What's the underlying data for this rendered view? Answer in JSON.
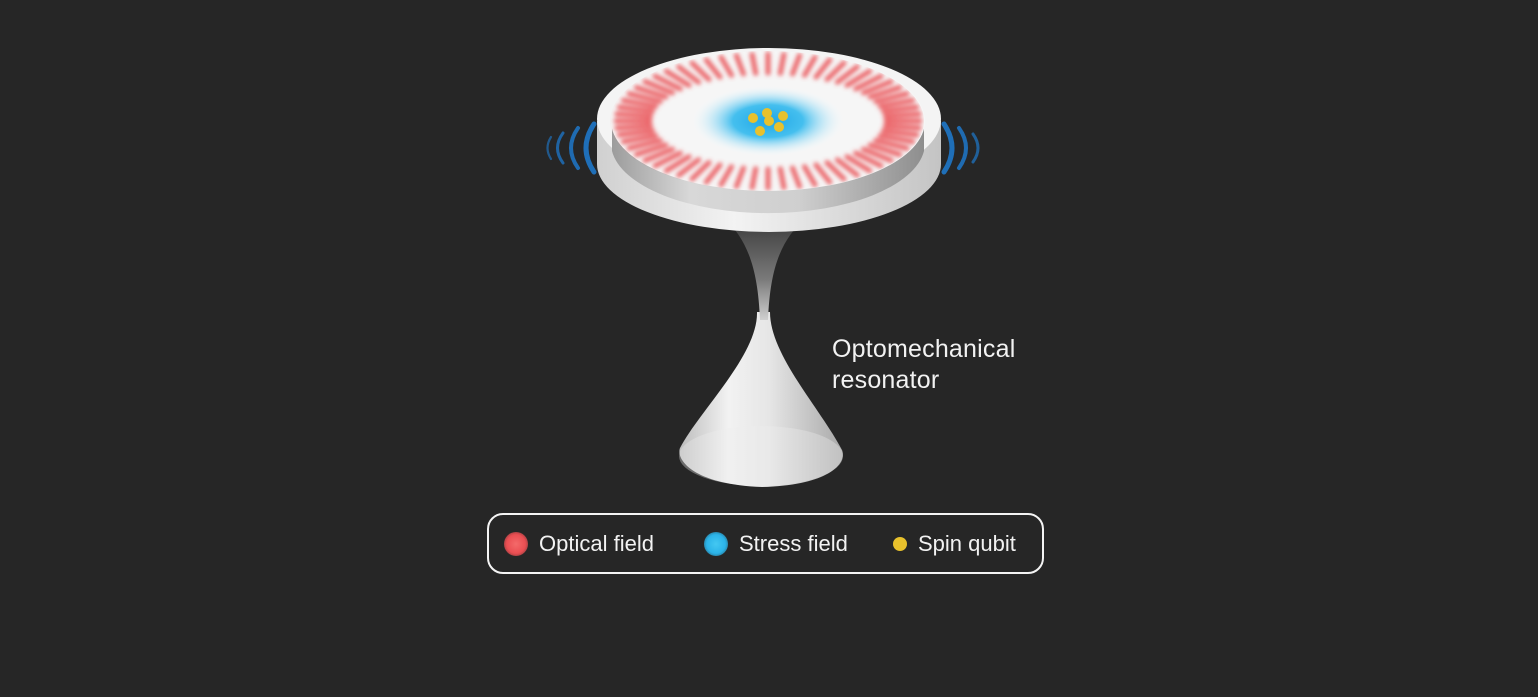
{
  "diagram": {
    "component_label_line1": "Optomechanical",
    "component_label_line2": "resonator"
  },
  "legend": {
    "items": [
      {
        "label": "Optical field",
        "color": "#ea4e52"
      },
      {
        "label": "Stress field",
        "color": "#2bb3e8"
      },
      {
        "label": "Spin qubit",
        "color": "#e8c12c"
      }
    ]
  },
  "colors": {
    "background": "#262626",
    "optical": "#ea4e52",
    "stress": "#2bb3e8",
    "spin": "#e8c12c",
    "vibration_arcs": "#1f6fb8",
    "disk": "#eeeeee"
  }
}
